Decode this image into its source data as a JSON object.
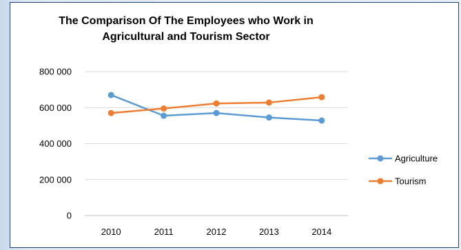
{
  "chart_data": {
    "type": "line",
    "title": "The Comparison Of The Employees who Work in Agricultural and Tourism Sector",
    "title_lines": [
      "The Comparison Of The Employees who Work in",
      "Agricultural and Tourism Sector"
    ],
    "categories": [
      "2010",
      "2011",
      "2012",
      "2013",
      "2014"
    ],
    "y_ticks": [
      0,
      200000,
      400000,
      600000,
      800000
    ],
    "y_tick_labels": [
      "0",
      "200 000",
      "400 000",
      "600 000",
      "800 000"
    ],
    "ylim": [
      0,
      800000
    ],
    "grid": "horizontal",
    "legend_position": "right",
    "series": [
      {
        "name": "Agriculture",
        "color": "#5b9bd5",
        "values": [
          670000,
          555000,
          570000,
          545000,
          528000
        ]
      },
      {
        "name": "Tourism",
        "color": "#ed7d31",
        "values": [
          570000,
          595000,
          623000,
          628000,
          658000
        ]
      }
    ]
  }
}
